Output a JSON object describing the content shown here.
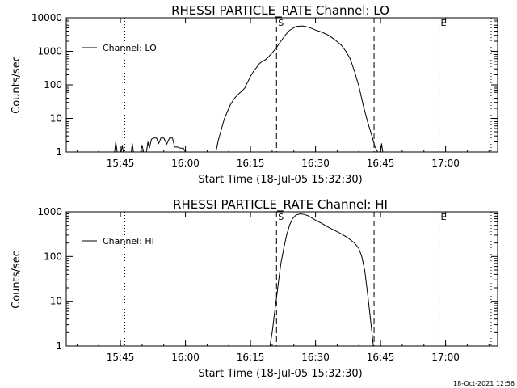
{
  "footer": {
    "timestamp": "18-Oct-2021 12:56"
  },
  "colors": {
    "background": "#ffffff",
    "ink": "#000000"
  },
  "chart_data": [
    {
      "type": "line",
      "title": "RHESSI PARTICLE_RATE Channel: LO",
      "xlabel": "Start Time (18-Jul-05 15:32:30)",
      "ylabel": "Counts/sec",
      "y_scale": "log",
      "xlim": [
        "15:32:30",
        "17:12:00"
      ],
      "ylim": [
        1,
        10000
      ],
      "x_ticks": [
        "15:45",
        "16:00",
        "16:15",
        "16:30",
        "16:45",
        "17:00"
      ],
      "y_ticks": [
        "1",
        "10",
        "100",
        "1000",
        "10000"
      ],
      "legend": {
        "position": "top-left",
        "entries": [
          "Channel: LO"
        ]
      },
      "markers": [
        {
          "time": "15:46:00",
          "style": "dotted",
          "label": ""
        },
        {
          "time": "16:21:00",
          "style": "dashed",
          "label": "S"
        },
        {
          "time": "16:43:30",
          "style": "dashed",
          "label": ""
        },
        {
          "time": "16:58:30",
          "style": "dotted",
          "label": "E"
        },
        {
          "time": "17:10:30",
          "style": "dotted",
          "label": ""
        }
      ],
      "series": [
        {
          "name": "Channel: LO",
          "segments": [
            [
              [
                "15:43:40",
                1
              ],
              [
                "15:43:55",
                2
              ],
              [
                "15:44:15",
                1
              ]
            ],
            [
              [
                "15:45:10",
                1
              ],
              [
                "15:45:25",
                1.6
              ],
              [
                "15:45:40",
                1
              ]
            ],
            [
              [
                "15:47:30",
                1
              ],
              [
                "15:47:45",
                1.8
              ],
              [
                "15:48:00",
                1
              ]
            ],
            [
              [
                "15:49:40",
                1
              ],
              [
                "15:50:00",
                1.6
              ],
              [
                "15:50:20",
                1
              ],
              [
                "15:51:00",
                1
              ],
              [
                "15:51:20",
                2
              ],
              [
                "15:51:40",
                1.3
              ],
              [
                "15:52:10",
                2.4
              ],
              [
                "15:52:40",
                2.6
              ],
              [
                "15:53:20",
                2.6
              ],
              [
                "15:53:50",
                1.8
              ],
              [
                "15:54:20",
                2.6
              ],
              [
                "15:55:00",
                2.6
              ],
              [
                "15:55:40",
                1.7
              ],
              [
                "15:56:20",
                2.6
              ],
              [
                "15:57:00",
                2.6
              ],
              [
                "15:57:30",
                1.4
              ],
              [
                "15:58:10",
                1.4
              ],
              [
                "15:58:50",
                1.3
              ],
              [
                "15:59:30",
                1.3
              ],
              [
                "16:00:00",
                1
              ]
            ],
            [
              [
                "16:07:00",
                1
              ],
              [
                "16:07:30",
                2
              ],
              [
                "16:08:00",
                3.5
              ],
              [
                "16:08:30",
                6
              ],
              [
                "16:09:00",
                10
              ],
              [
                "16:09:40",
                16
              ],
              [
                "16:10:20",
                25
              ],
              [
                "16:11:00",
                35
              ],
              [
                "16:11:40",
                45
              ],
              [
                "16:12:20",
                55
              ],
              [
                "16:13:00",
                65
              ],
              [
                "16:13:40",
                80
              ],
              [
                "16:14:20",
                120
              ],
              [
                "16:15:00",
                180
              ],
              [
                "16:15:40",
                250
              ],
              [
                "16:16:20",
                320
              ],
              [
                "16:17:00",
                420
              ],
              [
                "16:17:40",
                500
              ],
              [
                "16:18:20",
                550
              ],
              [
                "16:19:00",
                650
              ],
              [
                "16:20:00",
                900
              ],
              [
                "16:21:00",
                1300
              ],
              [
                "16:22:00",
                2000
              ],
              [
                "16:23:00",
                3000
              ],
              [
                "16:24:00",
                4200
              ],
              [
                "16:25:30",
                5500
              ],
              [
                "16:27:00",
                5700
              ],
              [
                "16:28:30",
                5200
              ],
              [
                "16:30:00",
                4300
              ],
              [
                "16:31:30",
                3700
              ],
              [
                "16:33:00",
                3000
              ],
              [
                "16:34:30",
                2200
              ],
              [
                "16:36:00",
                1500
              ],
              [
                "16:37:00",
                1000
              ],
              [
                "16:38:00",
                600
              ],
              [
                "16:39:00",
                250
              ],
              [
                "16:40:00",
                90
              ],
              [
                "16:41:00",
                25
              ],
              [
                "16:42:00",
                8
              ],
              [
                "16:43:00",
                3
              ],
              [
                "16:43:40",
                1.5
              ],
              [
                "16:44:20",
                1
              ]
            ],
            [
              [
                "16:45:00",
                1
              ],
              [
                "16:45:15",
                1.8
              ],
              [
                "16:45:30",
                1
              ]
            ]
          ]
        }
      ]
    },
    {
      "type": "line",
      "title": "RHESSI PARTICLE_RATE Channel: HI",
      "xlabel": "Start Time (18-Jul-05 15:32:30)",
      "ylabel": "Counts/sec",
      "y_scale": "log",
      "xlim": [
        "15:32:30",
        "17:12:00"
      ],
      "ylim": [
        1,
        1000
      ],
      "x_ticks": [
        "15:45",
        "16:00",
        "16:15",
        "16:30",
        "16:45",
        "17:00"
      ],
      "y_ticks": [
        "1",
        "10",
        "100",
        "1000"
      ],
      "legend": {
        "position": "top-left",
        "entries": [
          "Channel: HI"
        ]
      },
      "markers": [
        {
          "time": "15:46:00",
          "style": "dotted",
          "label": ""
        },
        {
          "time": "16:21:00",
          "style": "dashed",
          "label": "S"
        },
        {
          "time": "16:43:30",
          "style": "dashed",
          "label": ""
        },
        {
          "time": "16:58:30",
          "style": "dotted",
          "label": "E"
        },
        {
          "time": "17:10:30",
          "style": "dotted",
          "label": ""
        }
      ],
      "series": [
        {
          "name": "Channel: HI",
          "segments": [
            [
              [
                "16:19:30",
                1
              ],
              [
                "16:20:00",
                2
              ],
              [
                "16:20:30",
                5
              ],
              [
                "16:21:00",
                12
              ],
              [
                "16:21:30",
                30
              ],
              [
                "16:22:00",
                70
              ],
              [
                "16:22:40",
                150
              ],
              [
                "16:23:20",
                300
              ],
              [
                "16:24:00",
                500
              ],
              [
                "16:24:40",
                700
              ],
              [
                "16:25:30",
                850
              ],
              [
                "16:26:30",
                900
              ],
              [
                "16:27:30",
                870
              ],
              [
                "16:28:30",
                800
              ],
              [
                "16:30:00",
                650
              ],
              [
                "16:31:30",
                550
              ],
              [
                "16:33:00",
                450
              ],
              [
                "16:34:30",
                380
              ],
              [
                "16:36:00",
                320
              ],
              [
                "16:37:30",
                260
              ],
              [
                "16:39:00",
                200
              ],
              [
                "16:40:00",
                150
              ],
              [
                "16:40:40",
                100
              ],
              [
                "16:41:20",
                50
              ],
              [
                "16:42:00",
                15
              ],
              [
                "16:42:40",
                4
              ],
              [
                "16:43:20",
                1
              ]
            ]
          ]
        }
      ]
    }
  ]
}
